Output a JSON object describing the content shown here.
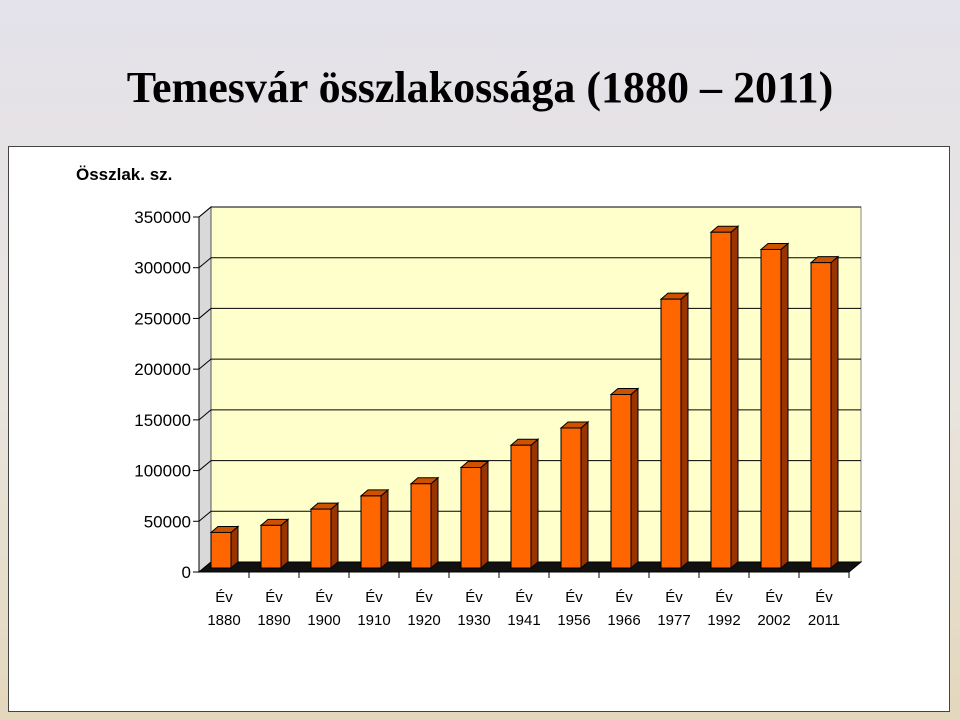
{
  "slide": {
    "title": "Temesvár összlakossága (1880 – 2011)"
  },
  "colors": {
    "plot_background": "#ffffcc",
    "bar_front": "#ff6600",
    "bar_side": "#993300",
    "bar_top": "#cc5200",
    "floor": "#111111"
  },
  "chart_data": {
    "type": "bar",
    "title": "",
    "ylabel": "Összlak. sz.",
    "xlabel": "",
    "ylim": [
      0,
      350000
    ],
    "yticks": [
      0,
      50000,
      100000,
      150000,
      200000,
      250000,
      300000,
      350000
    ],
    "grid": true,
    "style": "3d",
    "category_prefix": "Év",
    "categories": [
      "1880",
      "1890",
      "1900",
      "1910",
      "1920",
      "1930",
      "1941",
      "1956",
      "1966",
      "1977",
      "1992",
      "2002",
      "2011"
    ],
    "values": [
      39000,
      46000,
      62000,
      75000,
      87000,
      103000,
      125000,
      142000,
      175000,
      269000,
      335000,
      318000,
      305000
    ]
  }
}
